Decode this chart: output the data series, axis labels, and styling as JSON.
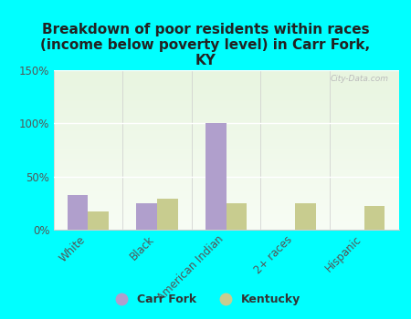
{
  "title": "Breakdown of poor residents within races\n(income below poverty level) in Carr Fork,\nKY",
  "categories": [
    "White",
    "Black",
    "American Indian",
    "2+ races",
    "Hispanic"
  ],
  "carr_fork_values": [
    33,
    25,
    100,
    0,
    0
  ],
  "kentucky_values": [
    17,
    29,
    25,
    25,
    22
  ],
  "carr_fork_color": "#b09fcc",
  "kentucky_color": "#c8cc8f",
  "background_color": "#00ffff",
  "grad_top": "#e8f5e0",
  "grad_bottom": "#f8fdf5",
  "ylim": [
    0,
    150
  ],
  "yticks": [
    0,
    50,
    100,
    150
  ],
  "ytick_labels": [
    "0%",
    "50%",
    "100%",
    "150%"
  ],
  "bar_width": 0.3,
  "legend_labels": [
    "Carr Fork",
    "Kentucky"
  ],
  "watermark": "City-Data.com",
  "title_fontsize": 11,
  "tick_fontsize": 8.5,
  "label_color": "#555555"
}
